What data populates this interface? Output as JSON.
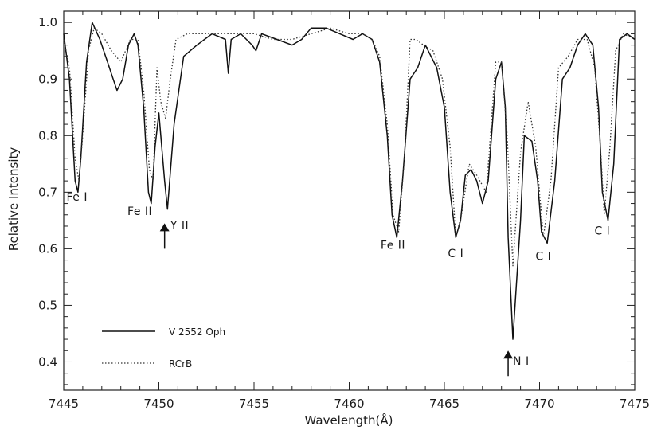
{
  "chart_data": {
    "type": "line",
    "title": "",
    "xlabel": "Wavelength(Å)",
    "ylabel": "Relative Intensity",
    "xlim": [
      7445,
      7475
    ],
    "ylim": [
      0.35,
      1.02
    ],
    "grid": false,
    "legend_position": "bottom-left",
    "x_ticks": [
      7445,
      7450,
      7455,
      7460,
      7465,
      7470,
      7475
    ],
    "y_ticks": [
      0.4,
      0.5,
      0.6,
      0.7,
      0.8,
      0.9,
      1.0
    ],
    "x_tick_labels": [
      "7445",
      "7450",
      "7455",
      "7460",
      "7465",
      "7470",
      "7475"
    ],
    "y_tick_labels": [
      "0.4",
      "0.5",
      "0.6",
      "0.7",
      "0.8",
      "0.9",
      "1.0"
    ],
    "series": [
      {
        "name": "V 2552 Oph",
        "style": "solid",
        "color": "#111111",
        "x": [
          7445.0,
          7445.3,
          7445.6,
          7445.75,
          7445.9,
          7446.2,
          7446.5,
          7446.9,
          7447.3,
          7447.6,
          7447.8,
          7448.1,
          7448.4,
          7448.7,
          7448.9,
          7449.2,
          7449.45,
          7449.6,
          7449.8,
          7450.0,
          7450.3,
          7450.45,
          7450.8,
          7451.3,
          7452.0,
          7452.8,
          7453.5,
          7453.65,
          7453.8,
          7454.3,
          7454.9,
          7455.1,
          7455.4,
          7456.2,
          7457.0,
          7457.5,
          7458.0,
          7458.8,
          7459.5,
          7460.2,
          7460.7,
          7461.2,
          7461.6,
          7462.0,
          7462.25,
          7462.5,
          7462.8,
          7463.2,
          7463.6,
          7464.0,
          7464.6,
          7465.0,
          7465.3,
          7465.6,
          7465.85,
          7466.1,
          7466.4,
          7466.7,
          7467.0,
          7467.3,
          7467.7,
          7468.0,
          7468.2,
          7468.35,
          7468.6,
          7469.0,
          7469.2,
          7469.6,
          7469.9,
          7470.1,
          7470.4,
          7470.8,
          7471.2,
          7471.6,
          7472.0,
          7472.4,
          7472.8,
          7473.1,
          7473.3,
          7473.6,
          7473.9,
          7474.2,
          7474.6,
          7475.0
        ],
        "y": [
          0.98,
          0.9,
          0.72,
          0.7,
          0.76,
          0.93,
          1.0,
          0.97,
          0.93,
          0.9,
          0.88,
          0.9,
          0.96,
          0.98,
          0.96,
          0.85,
          0.7,
          0.68,
          0.78,
          0.84,
          0.72,
          0.67,
          0.82,
          0.94,
          0.96,
          0.98,
          0.97,
          0.91,
          0.97,
          0.98,
          0.96,
          0.95,
          0.98,
          0.97,
          0.96,
          0.97,
          0.99,
          0.99,
          0.98,
          0.97,
          0.98,
          0.97,
          0.93,
          0.8,
          0.66,
          0.62,
          0.72,
          0.9,
          0.92,
          0.96,
          0.92,
          0.85,
          0.7,
          0.62,
          0.65,
          0.73,
          0.74,
          0.72,
          0.68,
          0.72,
          0.9,
          0.93,
          0.85,
          0.62,
          0.44,
          0.65,
          0.8,
          0.79,
          0.72,
          0.63,
          0.61,
          0.72,
          0.9,
          0.92,
          0.96,
          0.98,
          0.96,
          0.85,
          0.7,
          0.65,
          0.75,
          0.97,
          0.98,
          0.97
        ]
      },
      {
        "name": "RCrB",
        "style": "dotted",
        "color": "#333333",
        "x": [
          7445.0,
          7445.3,
          7445.6,
          7445.8,
          7446.0,
          7446.3,
          7446.6,
          7447.0,
          7447.5,
          7448.0,
          7448.5,
          7448.9,
          7449.2,
          7449.5,
          7449.7,
          7449.9,
          7450.1,
          7450.35,
          7450.6,
          7450.9,
          7451.5,
          7452.2,
          7453.0,
          7453.7,
          7454.3,
          7455.0,
          7456.0,
          7457.0,
          7458.0,
          7459.0,
          7460.0,
          7460.7,
          7461.2,
          7461.6,
          7462.0,
          7462.3,
          7462.6,
          7462.9,
          7463.2,
          7463.5,
          7463.9,
          7464.4,
          7464.9,
          7465.3,
          7465.6,
          7465.9,
          7466.3,
          7466.7,
          7467.2,
          7467.7,
          7468.0,
          7468.3,
          7468.6,
          7469.0,
          7469.4,
          7469.8,
          7470.0,
          7470.2,
          7470.6,
          7471.0,
          7471.5,
          7472.0,
          7472.5,
          7472.9,
          7473.2,
          7473.4,
          7473.7,
          7474.0,
          7474.4,
          7475.0
        ],
        "y": [
          0.97,
          0.92,
          0.76,
          0.72,
          0.8,
          0.95,
          0.99,
          0.98,
          0.95,
          0.93,
          0.97,
          0.97,
          0.88,
          0.74,
          0.72,
          0.92,
          0.86,
          0.83,
          0.9,
          0.97,
          0.98,
          0.98,
          0.98,
          0.98,
          0.98,
          0.98,
          0.97,
          0.97,
          0.98,
          0.99,
          0.98,
          0.98,
          0.97,
          0.94,
          0.82,
          0.66,
          0.63,
          0.76,
          0.97,
          0.97,
          0.96,
          0.95,
          0.9,
          0.78,
          0.62,
          0.66,
          0.75,
          0.73,
          0.7,
          0.93,
          0.93,
          0.8,
          0.57,
          0.77,
          0.86,
          0.78,
          0.7,
          0.62,
          0.72,
          0.92,
          0.94,
          0.97,
          0.97,
          0.92,
          0.78,
          0.66,
          0.78,
          0.95,
          0.98,
          0.97
        ]
      }
    ],
    "annotations": [
      {
        "text": "Fe I",
        "x": 7445.7,
        "y": 0.685,
        "anchor": "middle"
      },
      {
        "text": "Fe II",
        "x": 7449.0,
        "y": 0.66,
        "anchor": "middle"
      },
      {
        "text": "Y II",
        "x": 7450.6,
        "y": 0.635,
        "anchor": "start"
      },
      {
        "text": "Fe II",
        "x": 7462.3,
        "y": 0.6,
        "anchor": "middle"
      },
      {
        "text": "C I",
        "x": 7465.6,
        "y": 0.585,
        "anchor": "middle"
      },
      {
        "text": "C I",
        "x": 7470.2,
        "y": 0.58,
        "anchor": "middle"
      },
      {
        "text": "C I",
        "x": 7473.3,
        "y": 0.625,
        "anchor": "middle"
      },
      {
        "text": "N I",
        "x": 7468.6,
        "y": 0.395,
        "anchor": "start"
      }
    ],
    "arrows": [
      {
        "x": 7450.3,
        "y_from": 0.6,
        "y_to": 0.645,
        "label": "Y II"
      },
      {
        "x": 7468.35,
        "y_from": 0.375,
        "y_to": 0.42,
        "label": "N I"
      }
    ]
  }
}
